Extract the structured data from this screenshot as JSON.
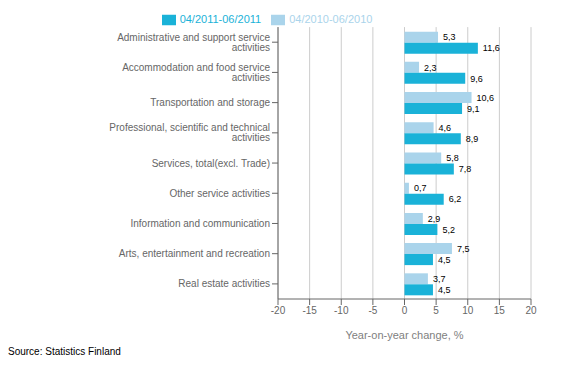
{
  "chart_data": {
    "type": "bar",
    "orientation": "horizontal",
    "categories": [
      "Administrative and support service activities",
      "Accommodation and food service activities",
      "Transportation and storage",
      "Professional, scientific and technical activities",
      "Services, total(excl. Trade)",
      "Other service activities",
      "Information and communication",
      "Arts, entertainment and recreation",
      "Real estate activities"
    ],
    "series": [
      {
        "name": "04/2011-06/2011",
        "color": "#1ab2d8",
        "values": [
          11.6,
          9.6,
          9.1,
          8.9,
          7.8,
          6.2,
          5.2,
          4.5,
          4.5
        ],
        "value_labels": [
          "11,6",
          "9,6",
          "9,1",
          "8,9",
          "7,8",
          "6,2",
          "5,2",
          "4,5",
          "4,5"
        ]
      },
      {
        "name": "04/2010-06/2010",
        "color": "#aad4eb",
        "values": [
          5.3,
          2.3,
          10.6,
          4.6,
          5.8,
          0.7,
          2.9,
          7.5,
          3.7
        ],
        "value_labels": [
          "5,3",
          "2,3",
          "10,6",
          "4,6",
          "5,8",
          "0,7",
          "2,9",
          "7,5",
          "3,7"
        ]
      }
    ],
    "xlabel": "Year-on-year change, %",
    "source": "Source: Statistics Finland",
    "xlim": [
      -20,
      20
    ],
    "xticks": [
      -20,
      -15,
      -10,
      -5,
      0,
      5,
      10,
      15,
      20
    ],
    "grid": true,
    "legend": "top",
    "data_labels": true
  }
}
